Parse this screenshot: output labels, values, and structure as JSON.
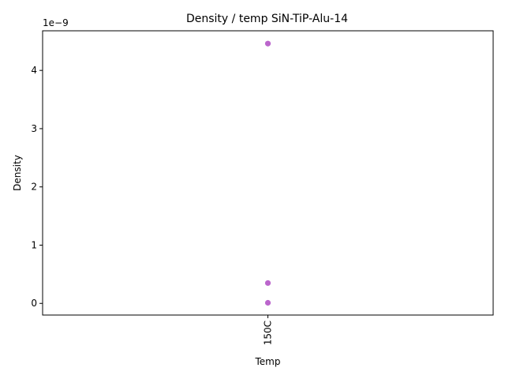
{
  "chart_data": {
    "type": "scatter",
    "title": "Density / temp SiN-TiP-Alu-14",
    "xlabel": "Temp",
    "ylabel": "Density",
    "categories": [
      "150C"
    ],
    "y_offset_label": "1e−9",
    "y_scale": 1e-09,
    "ylim": [
      -2e-10,
      4.68e-09
    ],
    "y_ticks": [
      0,
      1e-09,
      2e-09,
      3e-09,
      4e-09
    ],
    "y_tick_labels": [
      "0",
      "1",
      "2",
      "3",
      "4"
    ],
    "series": [
      {
        "name": "Density",
        "color": "#bb66cc",
        "points": [
          {
            "x": "150C",
            "y": 4.46e-09
          },
          {
            "x": "150C",
            "y": 3.5e-10
          },
          {
            "x": "150C",
            "y": 1e-11
          }
        ]
      }
    ]
  }
}
